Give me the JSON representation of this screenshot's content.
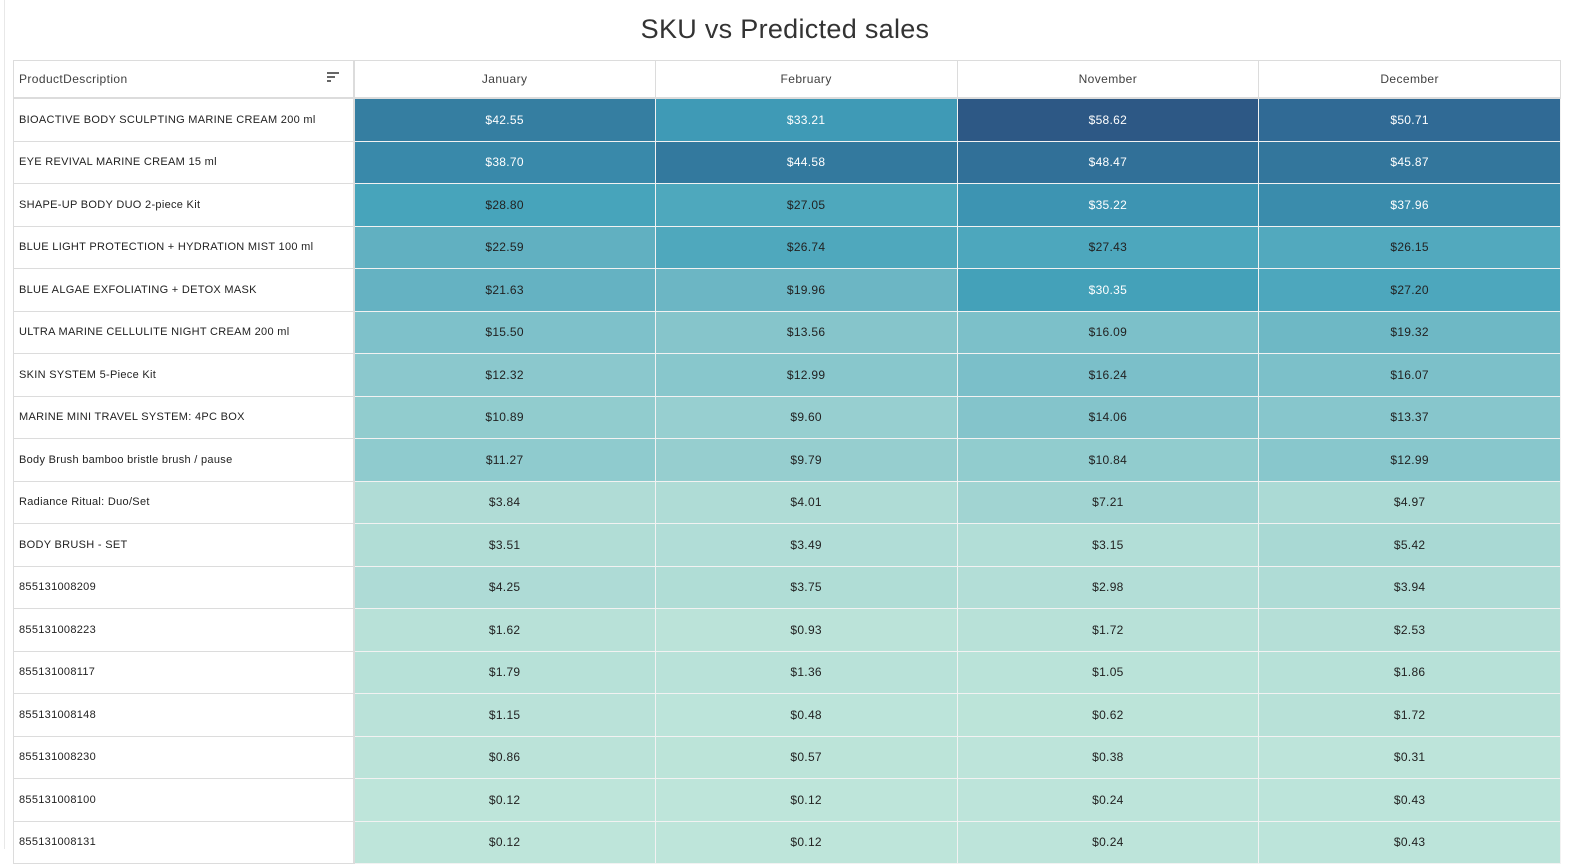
{
  "chart_data": {
    "type": "heatmap",
    "title": "SKU vs Predicted sales",
    "row_header": "ProductDescription",
    "columns": [
      "January",
      "February",
      "November",
      "December"
    ],
    "rows": [
      {
        "label": "BIOACTIVE BODY SCULPTING MARINE CREAM 200 ml",
        "values": [
          42.55,
          33.21,
          58.62,
          50.71
        ]
      },
      {
        "label": "EYE REVIVAL MARINE CREAM 15 ml",
        "values": [
          38.7,
          44.58,
          48.47,
          45.87
        ]
      },
      {
        "label": "SHAPE-UP BODY DUO 2-piece Kit",
        "values": [
          28.8,
          27.05,
          35.22,
          37.96
        ]
      },
      {
        "label": "BLUE LIGHT PROTECTION + HYDRATION MIST 100 ml",
        "values": [
          22.59,
          26.74,
          27.43,
          26.15
        ]
      },
      {
        "label": "BLUE ALGAE EXFOLIATING + DETOX MASK",
        "values": [
          21.63,
          19.96,
          30.35,
          27.2
        ]
      },
      {
        "label": "ULTRA MARINE CELLULITE NIGHT CREAM 200 ml",
        "values": [
          15.5,
          13.56,
          16.09,
          19.32
        ]
      },
      {
        "label": "SKIN SYSTEM 5-Piece Kit",
        "values": [
          12.32,
          12.99,
          16.24,
          16.07
        ]
      },
      {
        "label": "MARINE MINI TRAVEL SYSTEM:  4PC BOX",
        "values": [
          10.89,
          9.6,
          14.06,
          13.37
        ]
      },
      {
        "label": "Body Brush bamboo bristle brush / pause",
        "values": [
          11.27,
          9.79,
          10.84,
          12.99
        ]
      },
      {
        "label": "Radiance Ritual: Duo/Set",
        "values": [
          3.84,
          4.01,
          7.21,
          4.97
        ]
      },
      {
        "label": "BODY BRUSH - SET",
        "values": [
          3.51,
          3.49,
          3.15,
          5.42
        ]
      },
      {
        "label": "855131008209",
        "values": [
          4.25,
          3.75,
          2.98,
          3.94
        ]
      },
      {
        "label": "855131008223",
        "values": [
          1.62,
          0.93,
          1.72,
          2.53
        ]
      },
      {
        "label": "855131008117",
        "values": [
          1.79,
          1.36,
          1.05,
          1.86
        ]
      },
      {
        "label": "855131008148",
        "values": [
          1.15,
          0.48,
          0.62,
          1.72
        ]
      },
      {
        "label": "855131008230",
        "values": [
          0.86,
          0.57,
          0.38,
          0.31
        ]
      },
      {
        "label": "855131008100",
        "values": [
          0.12,
          0.12,
          0.24,
          0.43
        ]
      },
      {
        "label": "855131008131",
        "values": [
          0.12,
          0.12,
          0.24,
          0.43
        ]
      }
    ],
    "value_format": "currency-usd",
    "color_scale": [
      {
        "value": 0,
        "color": "#bee5da"
      },
      {
        "value": 4,
        "color": "#afdcd6"
      },
      {
        "value": 12,
        "color": "#8cc9cd"
      },
      {
        "value": 16,
        "color": "#7cc0c9"
      },
      {
        "value": 22,
        "color": "#63b1c2"
      },
      {
        "value": 29,
        "color": "#46a4bb"
      },
      {
        "value": 34,
        "color": "#3e98b5"
      },
      {
        "value": 42,
        "color": "#357fa2"
      },
      {
        "value": 50,
        "color": "#306c96"
      },
      {
        "value": 59,
        "color": "#2d5784"
      }
    ],
    "light_text_color": "#ffffff",
    "dark_text_color": "#222222"
  }
}
